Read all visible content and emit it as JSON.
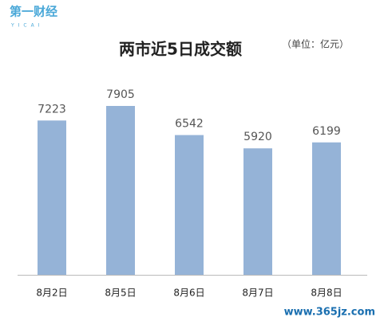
{
  "logo": {
    "name": "第一财经",
    "sub": "YICAI"
  },
  "watermark": "www.365jz.com",
  "chart_data": {
    "type": "bar",
    "title": "两市近5日成交额",
    "subtitle": "（单位：亿元）",
    "categories": [
      "8月2日",
      "8月5日",
      "8月6日",
      "8月7日",
      "8月8日"
    ],
    "values": [
      7223,
      7905,
      6542,
      5920,
      6199
    ],
    "color": "#95b3d7"
  }
}
